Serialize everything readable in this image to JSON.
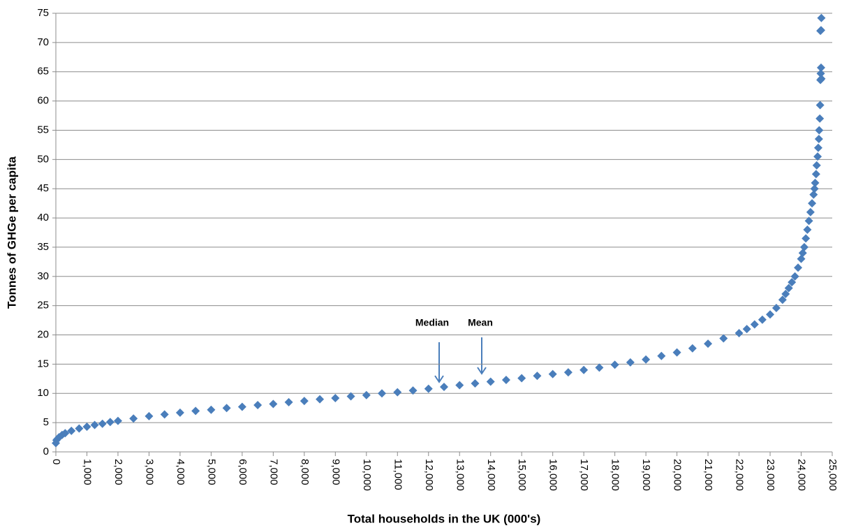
{
  "chart_data": {
    "type": "scatter",
    "x_label": "Total households in the UK (000's)",
    "y_label": "Tonnes of GHGe per capita",
    "annotations": [
      "Median",
      "Mean"
    ],
    "color": "#4a7ebb",
    "grid": true,
    "xlim": [
      0,
      25000
    ],
    "ylim": [
      0,
      75
    ],
    "xticks": [
      0,
      {
        "value": 1000,
        "label": "1,000"
      },
      {
        "value": 2000,
        "label": "2,000"
      },
      {
        "value": 3000,
        "label": "3,000"
      },
      {
        "value": 4000,
        "label": "4,000"
      },
      {
        "value": 5000,
        "label": "5,000"
      },
      {
        "value": 6000,
        "label": "6,000"
      },
      {
        "value": 7000,
        "label": "7,000"
      },
      {
        "value": 8000,
        "label": "8,000"
      },
      {
        "value": 9000,
        "label": "9,000"
      },
      {
        "value": 10000,
        "label": "10,000"
      },
      {
        "value": 11000,
        "label": "11,000"
      },
      {
        "value": 12000,
        "label": "12,000"
      },
      {
        "value": 13000,
        "label": "13,000"
      },
      {
        "value": 14000,
        "label": "14,000"
      },
      {
        "value": 15000,
        "label": "15,000"
      },
      {
        "value": 16000,
        "label": "16,000"
      },
      {
        "value": 17000,
        "label": "17,000"
      },
      {
        "value": 18000,
        "label": "18,000"
      },
      {
        "value": 19000,
        "label": "19,000"
      },
      {
        "value": 20000,
        "label": "20,000"
      },
      {
        "value": 21000,
        "label": "21,000"
      },
      {
        "value": 22000,
        "label": "22,000"
      },
      {
        "value": 23000,
        "label": "23,000"
      },
      {
        "value": 24000,
        "label": "24,000"
      },
      {
        "value": 25000,
        "label": "25,000"
      }
    ],
    "yticks": [
      0,
      5,
      10,
      15,
      20,
      25,
      30,
      35,
      40,
      45,
      50,
      55,
      60,
      65,
      70,
      75
    ],
    "x": [
      0,
      20,
      50,
      100,
      200,
      300,
      500,
      750,
      1000,
      1250,
      1500,
      1750,
      2000,
      2500,
      3000,
      3500,
      4000,
      4500,
      5000,
      5500,
      6000,
      6500,
      7000,
      7500,
      8000,
      8500,
      9000,
      9500,
      10000,
      10500,
      11000,
      11500,
      12000,
      12500,
      13000,
      13500,
      14000,
      14500,
      15000,
      15500,
      16000,
      16500,
      17000,
      17500,
      18000,
      18500,
      19000,
      19500,
      20000,
      20500,
      21000,
      21500,
      22000,
      22250,
      22500,
      22750,
      23000,
      23200,
      23400,
      23500,
      23600,
      23700,
      23800,
      23900,
      24000,
      24050,
      24100,
      24150,
      24200,
      24250,
      24300,
      24350,
      24400,
      24430,
      24450,
      24480,
      24500,
      24530,
      24550,
      24570,
      24580,
      24600,
      24610,
      24620,
      24630,
      24640,
      24650,
      24620,
      24640,
      24650
    ],
    "y": [
      1.5,
      2.0,
      2.2,
      2.5,
      2.9,
      3.2,
      3.6,
      4.0,
      4.3,
      4.6,
      4.8,
      5.1,
      5.3,
      5.7,
      6.1,
      6.4,
      6.7,
      7.0,
      7.2,
      7.5,
      7.7,
      8.0,
      8.2,
      8.5,
      8.7,
      9.0,
      9.2,
      9.5,
      9.7,
      10.0,
      10.2,
      10.5,
      10.8,
      11.1,
      11.4,
      11.7,
      12.0,
      12.3,
      12.6,
      13.0,
      13.3,
      13.6,
      14.0,
      14.4,
      14.9,
      15.3,
      15.8,
      16.4,
      17.0,
      17.7,
      18.5,
      19.4,
      20.3,
      21.0,
      21.8,
      22.6,
      23.5,
      24.6,
      26.0,
      27.0,
      28.0,
      29.0,
      30.0,
      31.5,
      33.0,
      34.0,
      35.0,
      36.5,
      38.0,
      39.5,
      41.0,
      42.5,
      44.0,
      45.0,
      46.0,
      47.5,
      49.0,
      50.5,
      52.0,
      53.5,
      55.0,
      57.0,
      59.3,
      63.6,
      64.7,
      65.7,
      63.8,
      72.0,
      72.1,
      74.2
    ]
  }
}
